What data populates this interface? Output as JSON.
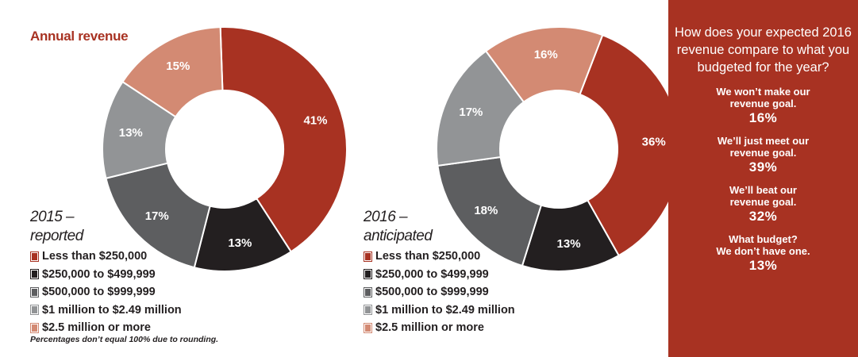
{
  "title": "Annual revenue",
  "colors": {
    "accent": "#a83222",
    "slices": [
      "#a83222",
      "#231f20",
      "#5d5e60",
      "#929496",
      "#d38a73"
    ]
  },
  "chart_data": [
    {
      "type": "pie",
      "title": "Annual revenue",
      "label_lines": [
        "2015 –",
        "reported"
      ],
      "categories": [
        "Less than $250,000",
        "$250,000 to $499,999",
        "$500,000 to $999,999",
        "$1 million to $2.49 million",
        "$2.5 million or more"
      ],
      "values": [
        41,
        13,
        17,
        13,
        15
      ],
      "value_labels": [
        "41%",
        "13%",
        "17%",
        "13%",
        "15%"
      ],
      "legend": [
        "Less than $250,000",
        "$250,000 to $499,999",
        "$500,000 to $999,999",
        "$1 million to $2.49 million",
        "$2.5 million or more"
      ]
    },
    {
      "type": "pie",
      "label_lines": [
        "2016 –",
        "anticipated"
      ],
      "categories": [
        "Less than $250,000",
        "$250,000 to $499,999",
        "$500,000 to $999,999",
        "$1 million to $2.49 million",
        "$2.5 million or more"
      ],
      "values": [
        36,
        13,
        18,
        17,
        16
      ],
      "value_labels": [
        "36%",
        "13%",
        "18%",
        "17%",
        "16%"
      ],
      "legend": [
        "Less than $250,000",
        "$250,000 to $499,999",
        "$500,000 to $999,999",
        "$1 million to $2.49 million",
        "$2.5 million or more"
      ]
    }
  ],
  "footnote": "Percentages don’t equal 100% due to rounding.",
  "panel": {
    "question": "How does your expected 2016 revenue compare to what you budgeted for the year?",
    "answers": [
      {
        "text": "We won’t make our\nrevenue goal.",
        "value": "16%"
      },
      {
        "text": "We’ll just meet our\nrevenue goal.",
        "value": "39%"
      },
      {
        "text": "We’ll beat our\nrevenue goal.",
        "value": "32%"
      },
      {
        "text": "What budget?\nWe don’t have one.",
        "value": "13%"
      }
    ]
  }
}
